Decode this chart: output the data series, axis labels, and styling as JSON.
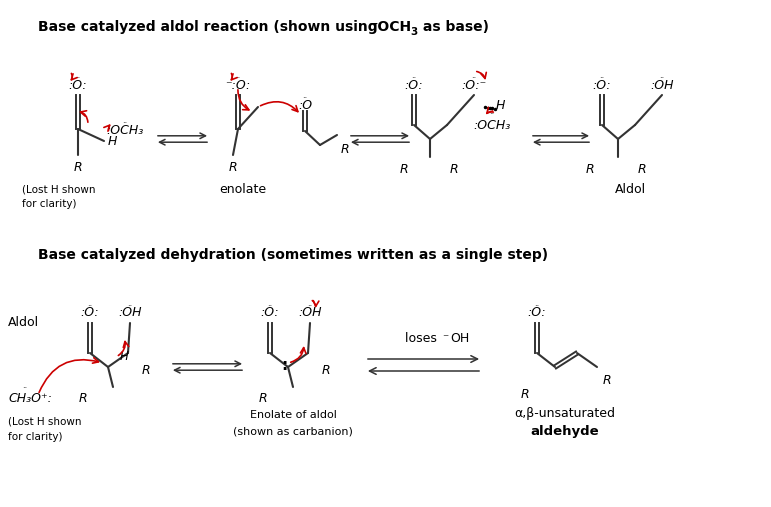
{
  "bg_color": "#ffffff",
  "text_color": "#000000",
  "arrow_color": "#cc0000",
  "line_color": "#333333",
  "title1a": "Base catalyzed aldol reaction (shown using ",
  "title1b": "⁻OCH",
  "title1c": "3",
  "title1d": " as base)",
  "title2": "Base catalyzed dehydration (sometimes written as a single step)",
  "minus_sign": "⁻",
  "OCH3": "OCH₃",
  "enolate_label": "enolate",
  "aldol_label": "Aldol",
  "lost_h1": "(Lost H shown",
  "lost_h2": "for clarity)",
  "enolate_of_aldol1": "Enolate of aldol",
  "enolate_of_aldol2": "(shown as carbanion)",
  "loses_oh": "loses ",
  "minus_oh": "OH",
  "alpha_beta": "α,β-unsaturated",
  "aldehyde": "aldehyde"
}
